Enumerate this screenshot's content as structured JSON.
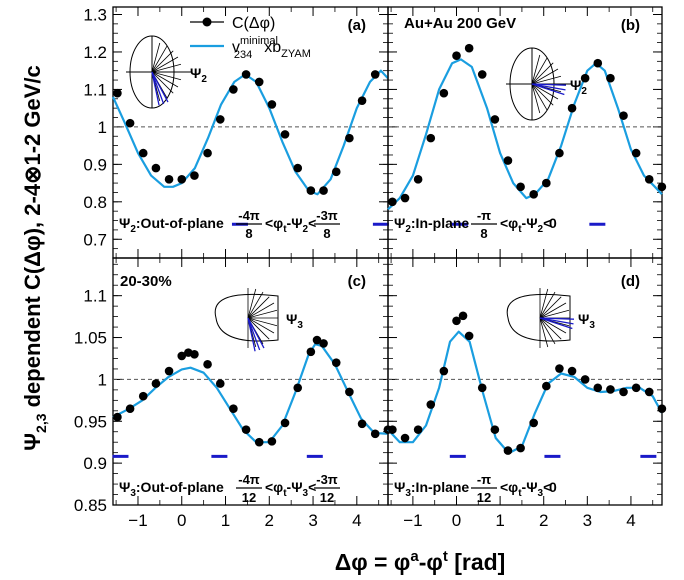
{
  "figure": {
    "ylabel_parts": [
      "Ψ",
      "2,3",
      " dependent C(Δφ), 2-4⊗1-2 GeV/c"
    ],
    "xlabel_parts": [
      "Δφ = φ",
      "a",
      "-φ",
      "t",
      " [rad]"
    ],
    "legend": {
      "data_label": "C(Δφ)",
      "curve_label_parts": [
        "v",
        "minimal",
        "234",
        "xb",
        "ZYAM"
      ]
    },
    "collision": "Au+Au 200 GeV",
    "centrality": "20-30%",
    "colors": {
      "curve": "#1a9ee0",
      "marker": "#000000",
      "bar": "#1a1ac8",
      "reference": "#555555"
    }
  },
  "chart_data": [
    {
      "type": "line",
      "panel": "(a)",
      "xlim": [
        -1.5708,
        4.7124
      ],
      "ylim": [
        0.65,
        1.32
      ],
      "yticks": [
        0.7,
        0.8,
        0.9,
        1,
        1.1,
        1.2,
        1.3
      ],
      "ytick_labels": [
        "0.7",
        "0.8",
        "0.9",
        "1",
        "1.1",
        "1.2",
        "1.3"
      ],
      "xticks": [
        -1,
        0,
        1,
        2,
        3,
        4
      ],
      "xtick_labels": [],
      "reference_y": 1,
      "plane_label": "Ψ₂:Out-of-plane",
      "range_label": {
        "sym": "Ψ",
        "sub": "2",
        "lo_num": "-4π",
        "lo_den": "8",
        "hi_num": "-3π",
        "hi_den": "8"
      },
      "psi_label": {
        "sym": "Ψ",
        "sub": "2"
      },
      "points": {
        "x": [
          -1.47,
          -1.18,
          -0.88,
          -0.59,
          -0.29,
          0.0,
          0.29,
          0.59,
          0.88,
          1.18,
          1.47,
          1.77,
          2.06,
          2.36,
          2.65,
          2.95,
          3.24,
          3.53,
          3.83,
          4.12,
          4.42
        ],
        "y": [
          1.09,
          1.01,
          0.93,
          0.89,
          0.86,
          0.86,
          0.87,
          0.93,
          1.02,
          1.1,
          1.14,
          1.12,
          1.06,
          0.98,
          0.89,
          0.83,
          0.83,
          0.88,
          0.97,
          1.07,
          1.14
        ]
      },
      "curve": {
        "x": [
          -1.57,
          -1.3,
          -1.0,
          -0.7,
          -0.4,
          -0.2,
          0.0,
          0.3,
          0.6,
          0.9,
          1.2,
          1.45,
          1.7,
          2.0,
          2.3,
          2.6,
          2.9,
          3.1,
          3.4,
          3.7,
          4.0,
          4.3,
          4.55,
          4.71
        ],
        "y": [
          1.08,
          1.01,
          0.93,
          0.87,
          0.84,
          0.84,
          0.85,
          0.89,
          0.97,
          1.06,
          1.12,
          1.14,
          1.12,
          1.05,
          0.96,
          0.88,
          0.83,
          0.82,
          0.86,
          0.95,
          1.05,
          1.12,
          1.15,
          1.13
        ]
      },
      "bars": [
        {
          "x": 1.33,
          "y": 0.74
        },
        {
          "x": 4.55,
          "y": 0.74
        }
      ]
    },
    {
      "type": "line",
      "panel": "(b)",
      "xlim": [
        -1.5708,
        4.7124
      ],
      "ylim": [
        0.65,
        1.32
      ],
      "yticks": [
        0.7,
        0.8,
        0.9,
        1,
        1.1,
        1.2,
        1.3
      ],
      "ytick_labels": [],
      "xticks": [
        -1,
        0,
        1,
        2,
        3,
        4
      ],
      "xtick_labels": [],
      "reference_y": 1,
      "plane_label": "Ψ₂:In-plane",
      "range_label": {
        "sym": "Ψ",
        "sub": "2",
        "lo_num": "-π",
        "lo_den": "8",
        "hi_num": "0",
        "hi_den": ""
      },
      "psi_label": {
        "sym": "Ψ",
        "sub": "2"
      },
      "points": {
        "x": [
          -1.47,
          -1.18,
          -0.88,
          -0.59,
          -0.29,
          0.0,
          0.29,
          0.59,
          0.88,
          1.18,
          1.47,
          1.77,
          2.06,
          2.36,
          2.65,
          2.95,
          3.24,
          3.53,
          3.83,
          4.12,
          4.42,
          4.71
        ],
        "y": [
          0.8,
          0.81,
          0.86,
          0.97,
          1.09,
          1.19,
          1.21,
          1.14,
          1.02,
          0.91,
          0.84,
          0.82,
          0.85,
          0.93,
          1.05,
          1.13,
          1.17,
          1.13,
          1.03,
          0.93,
          0.86,
          0.84
        ]
      },
      "curve": {
        "x": [
          -1.57,
          -1.3,
          -1.0,
          -0.7,
          -0.4,
          -0.1,
          0.1,
          0.35,
          0.7,
          1.0,
          1.3,
          1.6,
          1.8,
          2.1,
          2.4,
          2.7,
          3.0,
          3.2,
          3.4,
          3.7,
          4.0,
          4.3,
          4.55,
          4.71
        ],
        "y": [
          0.78,
          0.81,
          0.87,
          0.98,
          1.1,
          1.17,
          1.18,
          1.16,
          1.05,
          0.93,
          0.85,
          0.81,
          0.82,
          0.86,
          0.95,
          1.06,
          1.15,
          1.17,
          1.15,
          1.05,
          0.94,
          0.87,
          0.84,
          0.82
        ]
      },
      "bars": [
        {
          "x": 0.08,
          "y": 0.74
        },
        {
          "x": 3.23,
          "y": 0.74
        }
      ]
    },
    {
      "type": "line",
      "panel": "(c)",
      "xlim": [
        -1.5708,
        4.7124
      ],
      "ylim": [
        0.85,
        1.145
      ],
      "yticks": [
        0.85,
        0.9,
        0.95,
        1,
        1.05,
        1.1
      ],
      "ytick_labels": [
        "0.85",
        "0.9",
        "0.95",
        "1",
        "1.05",
        "1.1"
      ],
      "xticks": [
        -1,
        0,
        1,
        2,
        3,
        4
      ],
      "xtick_labels": [
        "−1",
        "0",
        "1",
        "2",
        "3",
        "4"
      ],
      "reference_y": 1,
      "plane_label": "Ψ₃:Out-of-plane",
      "range_label": {
        "sym": "Ψ",
        "sub": "3",
        "lo_num": "-4π",
        "lo_den": "12",
        "hi_num": "-3π",
        "hi_den": "12"
      },
      "psi_label": {
        "sym": "Ψ",
        "sub": "3"
      },
      "points": {
        "x": [
          -1.47,
          -1.18,
          -0.88,
          -0.59,
          -0.29,
          0.0,
          0.15,
          0.29,
          0.59,
          0.88,
          1.18,
          1.47,
          1.77,
          2.06,
          2.36,
          2.65,
          2.95,
          3.09,
          3.24,
          3.53,
          3.83,
          4.12,
          4.42,
          4.71
        ],
        "y": [
          0.955,
          0.965,
          0.98,
          0.995,
          1.01,
          1.028,
          1.032,
          1.03,
          1.018,
          0.995,
          0.965,
          0.94,
          0.925,
          0.926,
          0.948,
          0.99,
          1.033,
          1.047,
          1.043,
          1.02,
          0.985,
          0.947,
          0.935,
          0.94
        ]
      },
      "curve": {
        "x": [
          -1.57,
          -1.2,
          -0.9,
          -0.6,
          -0.3,
          0.0,
          0.2,
          0.5,
          0.8,
          1.1,
          1.4,
          1.7,
          2.0,
          2.3,
          2.6,
          2.9,
          3.05,
          3.2,
          3.5,
          3.8,
          4.1,
          4.4,
          4.71
        ],
        "y": [
          0.955,
          0.965,
          0.975,
          0.99,
          1.003,
          1.012,
          1.014,
          1.008,
          0.99,
          0.965,
          0.94,
          0.925,
          0.925,
          0.945,
          0.985,
          1.03,
          1.042,
          1.04,
          1.018,
          0.985,
          0.953,
          0.936,
          0.935
        ]
      },
      "bars": [
        {
          "x": -1.4,
          "y": 0.908
        },
        {
          "x": 0.86,
          "y": 0.908
        },
        {
          "x": 3.04,
          "y": 0.908
        }
      ]
    },
    {
      "type": "line",
      "panel": "(d)",
      "xlim": [
        -1.5708,
        4.7124
      ],
      "ylim": [
        0.85,
        1.145
      ],
      "yticks": [
        0.85,
        0.9,
        0.95,
        1,
        1.05,
        1.1
      ],
      "ytick_labels": [],
      "xticks": [
        -1,
        0,
        1,
        2,
        3,
        4
      ],
      "xtick_labels": [
        "−1",
        "0",
        "1",
        "2",
        "3",
        "4"
      ],
      "reference_y": 1,
      "plane_label": "Ψ₃:In-plane",
      "range_label": {
        "sym": "Ψ",
        "sub": "3",
        "lo_num": "-π",
        "lo_den": "12",
        "hi_num": "0",
        "hi_den": ""
      },
      "psi_label": {
        "sym": "Ψ",
        "sub": "3"
      },
      "points": {
        "x": [
          -1.47,
          -1.18,
          -0.88,
          -0.59,
          -0.29,
          0.0,
          0.15,
          0.29,
          0.59,
          0.88,
          1.18,
          1.47,
          1.77,
          2.06,
          2.36,
          2.65,
          2.95,
          3.24,
          3.53,
          3.83,
          4.12,
          4.42,
          4.71
        ],
        "y": [
          0.94,
          0.93,
          0.94,
          0.97,
          1.01,
          1.07,
          1.076,
          1.052,
          0.99,
          0.94,
          0.915,
          0.918,
          0.948,
          0.992,
          1.013,
          1.01,
          1.0,
          0.99,
          0.988,
          0.985,
          0.99,
          0.985,
          0.965
        ]
      },
      "curve": {
        "x": [
          -1.57,
          -1.3,
          -1.0,
          -0.7,
          -0.4,
          -0.15,
          0.05,
          0.3,
          0.6,
          0.9,
          1.2,
          1.5,
          1.8,
          2.1,
          2.4,
          2.7,
          3.0,
          3.3,
          3.6,
          3.9,
          4.2,
          4.5,
          4.71
        ],
        "y": [
          0.94,
          0.925,
          0.925,
          0.945,
          0.99,
          1.045,
          1.057,
          1.045,
          0.985,
          0.93,
          0.912,
          0.92,
          0.96,
          0.995,
          1.007,
          1.003,
          0.99,
          0.985,
          0.986,
          0.99,
          0.99,
          0.98,
          0.96
        ]
      },
      "bars": [
        {
          "x": 0.03,
          "y": 0.908
        },
        {
          "x": 2.2,
          "y": 0.908
        },
        {
          "x": 4.4,
          "y": 0.908
        }
      ]
    }
  ]
}
